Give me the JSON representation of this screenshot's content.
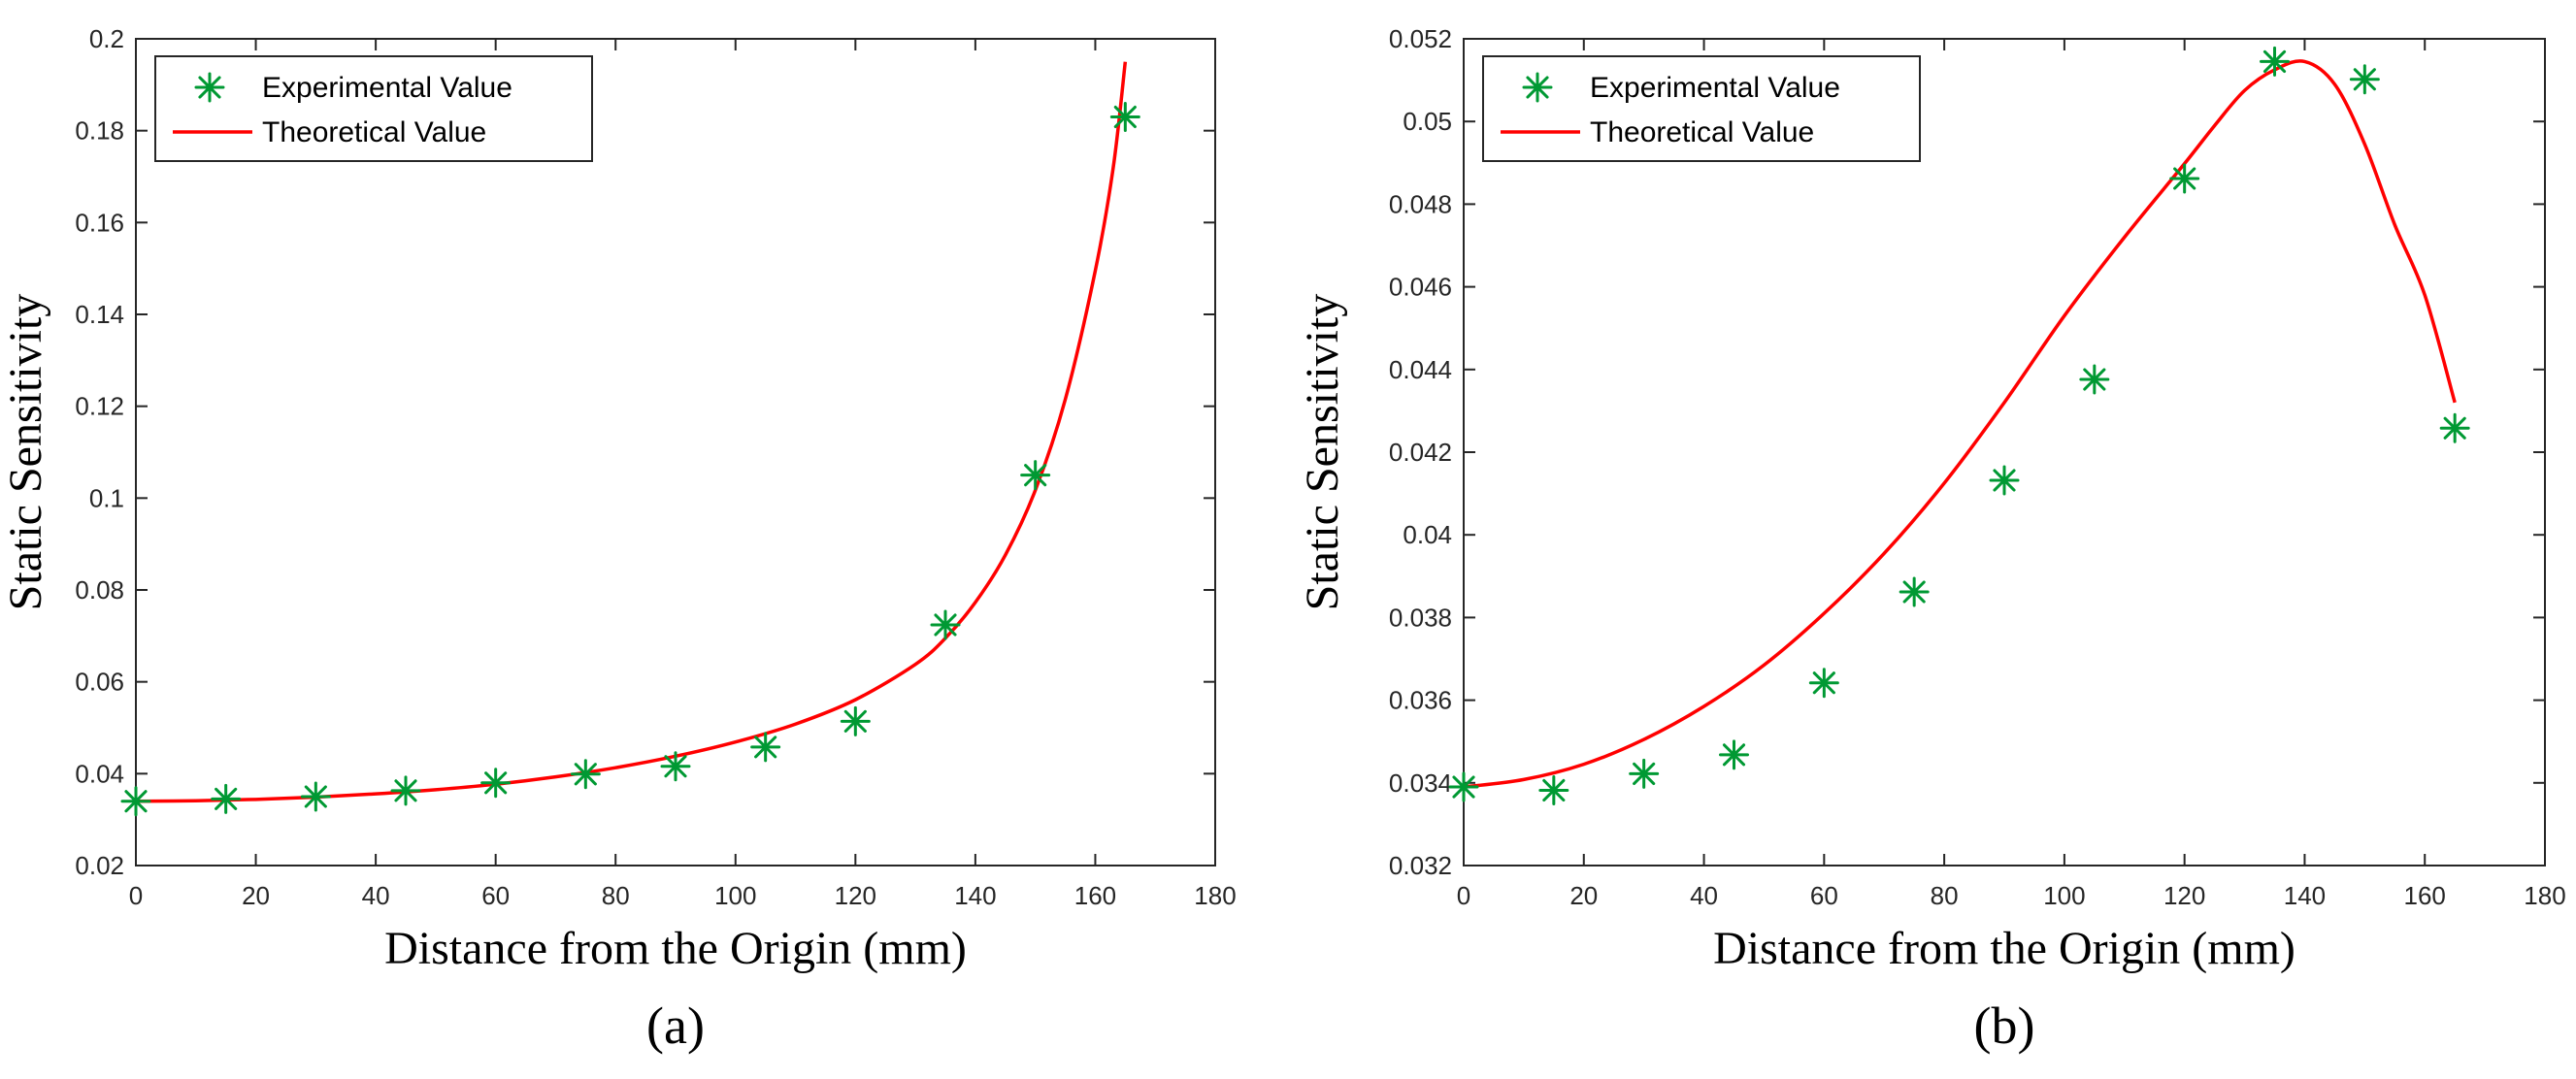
{
  "chart_data": [
    {
      "type": "line",
      "title": "",
      "panel_label": "(a)",
      "xlabel": "Distance from the Origin (mm)",
      "ylabel": "Static Sensitivity",
      "xlim": [
        0,
        180
      ],
      "ylim": [
        0.02,
        0.2
      ],
      "xticks": [
        0,
        20,
        40,
        60,
        80,
        100,
        120,
        140,
        160,
        180
      ],
      "xtick_labels": [
        "0",
        "20",
        "40",
        "60",
        "80",
        "100",
        "120",
        "140",
        "160",
        "180"
      ],
      "yticks": [
        0.02,
        0.04,
        0.06,
        0.08,
        0.1,
        0.12,
        0.14,
        0.16,
        0.18,
        0.2
      ],
      "ytick_labels": [
        "0.02",
        "0.04",
        "0.06",
        "0.08",
        "0.1",
        "0.12",
        "0.14",
        "0.16",
        "0.18",
        "0.2"
      ],
      "grid": false,
      "legend_position": "top-left",
      "series": [
        {
          "name": "Experimental Value",
          "style": "markers",
          "marker": "asterisk",
          "color": "#009933",
          "x": [
            0,
            15,
            30,
            45,
            60,
            75,
            90,
            105,
            120,
            135,
            150,
            165
          ],
          "y": [
            0.034,
            0.0345,
            0.035,
            0.0363,
            0.038,
            0.0399,
            0.0416,
            0.0458,
            0.0514,
            0.0724,
            0.105,
            0.183
          ]
        },
        {
          "name": "Theoretical Value",
          "style": "line",
          "color": "#ff0000",
          "x": [
            0,
            10,
            20,
            30,
            40,
            50,
            60,
            70,
            80,
            90,
            100,
            110,
            120,
            130,
            135,
            140,
            145,
            150,
            155,
            160,
            163,
            165
          ],
          "y": [
            0.034,
            0.0341,
            0.0344,
            0.0349,
            0.0356,
            0.0365,
            0.0377,
            0.0393,
            0.0413,
            0.0438,
            0.0469,
            0.0508,
            0.0561,
            0.0638,
            0.0695,
            0.0773,
            0.0876,
            0.1017,
            0.1215,
            0.1495,
            0.172,
            0.195
          ]
        }
      ]
    },
    {
      "type": "line",
      "title": "",
      "panel_label": "(b)",
      "xlabel": "Distance from the Origin (mm)",
      "ylabel": "Static Sensitivity",
      "xlim": [
        0,
        180
      ],
      "ylim": [
        0.032,
        0.052
      ],
      "xticks": [
        0,
        20,
        40,
        60,
        80,
        100,
        120,
        140,
        160,
        180
      ],
      "xtick_labels": [
        "0",
        "20",
        "40",
        "60",
        "80",
        "100",
        "120",
        "140",
        "160",
        "180"
      ],
      "yticks": [
        0.032,
        0.034,
        0.036,
        0.038,
        0.04,
        0.042,
        0.044,
        0.046,
        0.048,
        0.05,
        0.052
      ],
      "ytick_labels": [
        "0.032",
        "0.034",
        "0.036",
        "0.038",
        "0.04",
        "0.042",
        "0.044",
        "0.046",
        "0.048",
        "0.05",
        "0.052"
      ],
      "grid": false,
      "legend_position": "top-left",
      "series": [
        {
          "name": "Experimental Value",
          "style": "markers",
          "marker": "asterisk",
          "color": "#009933",
          "x": [
            0,
            15,
            30,
            45,
            60,
            75,
            90,
            105,
            120,
            135,
            150,
            165
          ],
          "y": [
            0.0339,
            0.03382,
            0.03422,
            0.03468,
            0.03642,
            0.03862,
            0.04132,
            0.04376,
            0.04862,
            0.05145,
            0.05102,
            0.04258
          ]
        },
        {
          "name": "Theoretical Value",
          "style": "line",
          "color": "#ff0000",
          "x": [
            0,
            10,
            20,
            30,
            40,
            50,
            60,
            70,
            80,
            90,
            100,
            110,
            120,
            125,
            130,
            135,
            140,
            145,
            150,
            155,
            160,
            165
          ],
          "y": [
            0.0339,
            0.03408,
            0.03445,
            0.03505,
            0.03585,
            0.03685,
            0.0381,
            0.03955,
            0.04125,
            0.0432,
            0.0453,
            0.0472,
            0.04898,
            0.0499,
            0.05075,
            0.05125,
            0.05145,
            0.0509,
            0.04945,
            0.0475,
            0.0458,
            0.0432
          ]
        }
      ]
    }
  ]
}
